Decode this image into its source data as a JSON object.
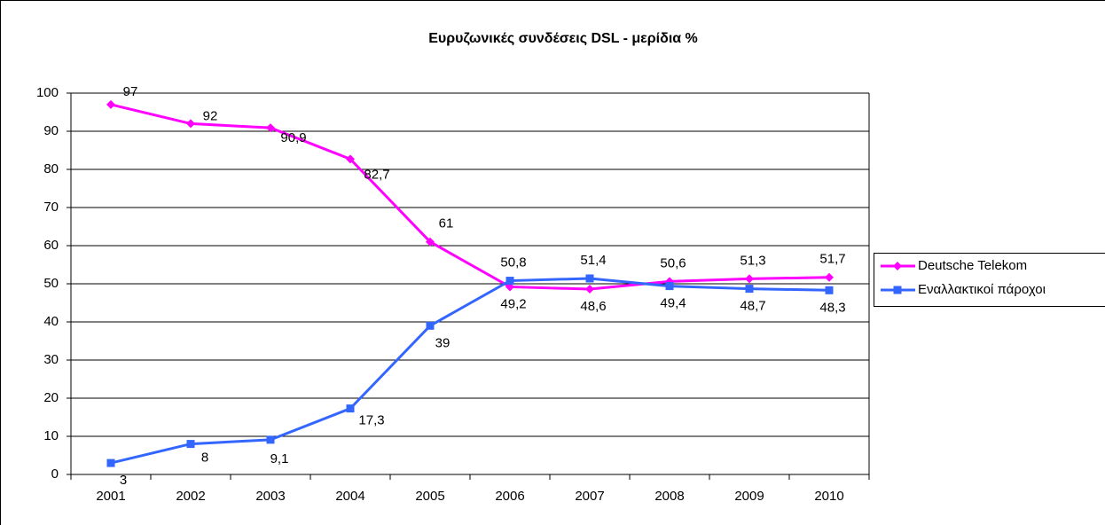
{
  "chart_data": {
    "type": "line",
    "title": "Ευρυζωνικές συνδέσεις DSL - μερίδια %",
    "categories": [
      "2001",
      "2002",
      "2003",
      "2004",
      "2005",
      "2006",
      "2007",
      "2008",
      "2009",
      "2010"
    ],
    "series": [
      {
        "name": "Deutsche Telekom",
        "color": "#ff00ff",
        "marker": "diamond",
        "values": [
          97,
          92,
          90.9,
          82.7,
          61,
          49.2,
          48.6,
          50.6,
          51.3,
          51.7
        ],
        "value_labels": [
          "97",
          "92",
          "90,9",
          "82,7",
          "61",
          "49,2",
          "48,6",
          "50,6",
          "51,3",
          "51,7"
        ]
      },
      {
        "name": "Εναλλακτικοί πάροχοι",
        "color": "#3366ff",
        "marker": "square",
        "values": [
          3,
          8,
          9.1,
          17.3,
          39,
          50.8,
          51.4,
          49.4,
          48.7,
          48.3
        ],
        "value_labels": [
          "3",
          "8",
          "9,1",
          "17,3",
          "39",
          "50,8",
          "51,4",
          "49,4",
          "48,7",
          "48,3"
        ]
      }
    ],
    "ylim": [
      0,
      100
    ],
    "yticks": [
      0,
      10,
      20,
      30,
      40,
      50,
      60,
      70,
      80,
      90,
      100
    ],
    "grid": true,
    "legend": "right"
  }
}
